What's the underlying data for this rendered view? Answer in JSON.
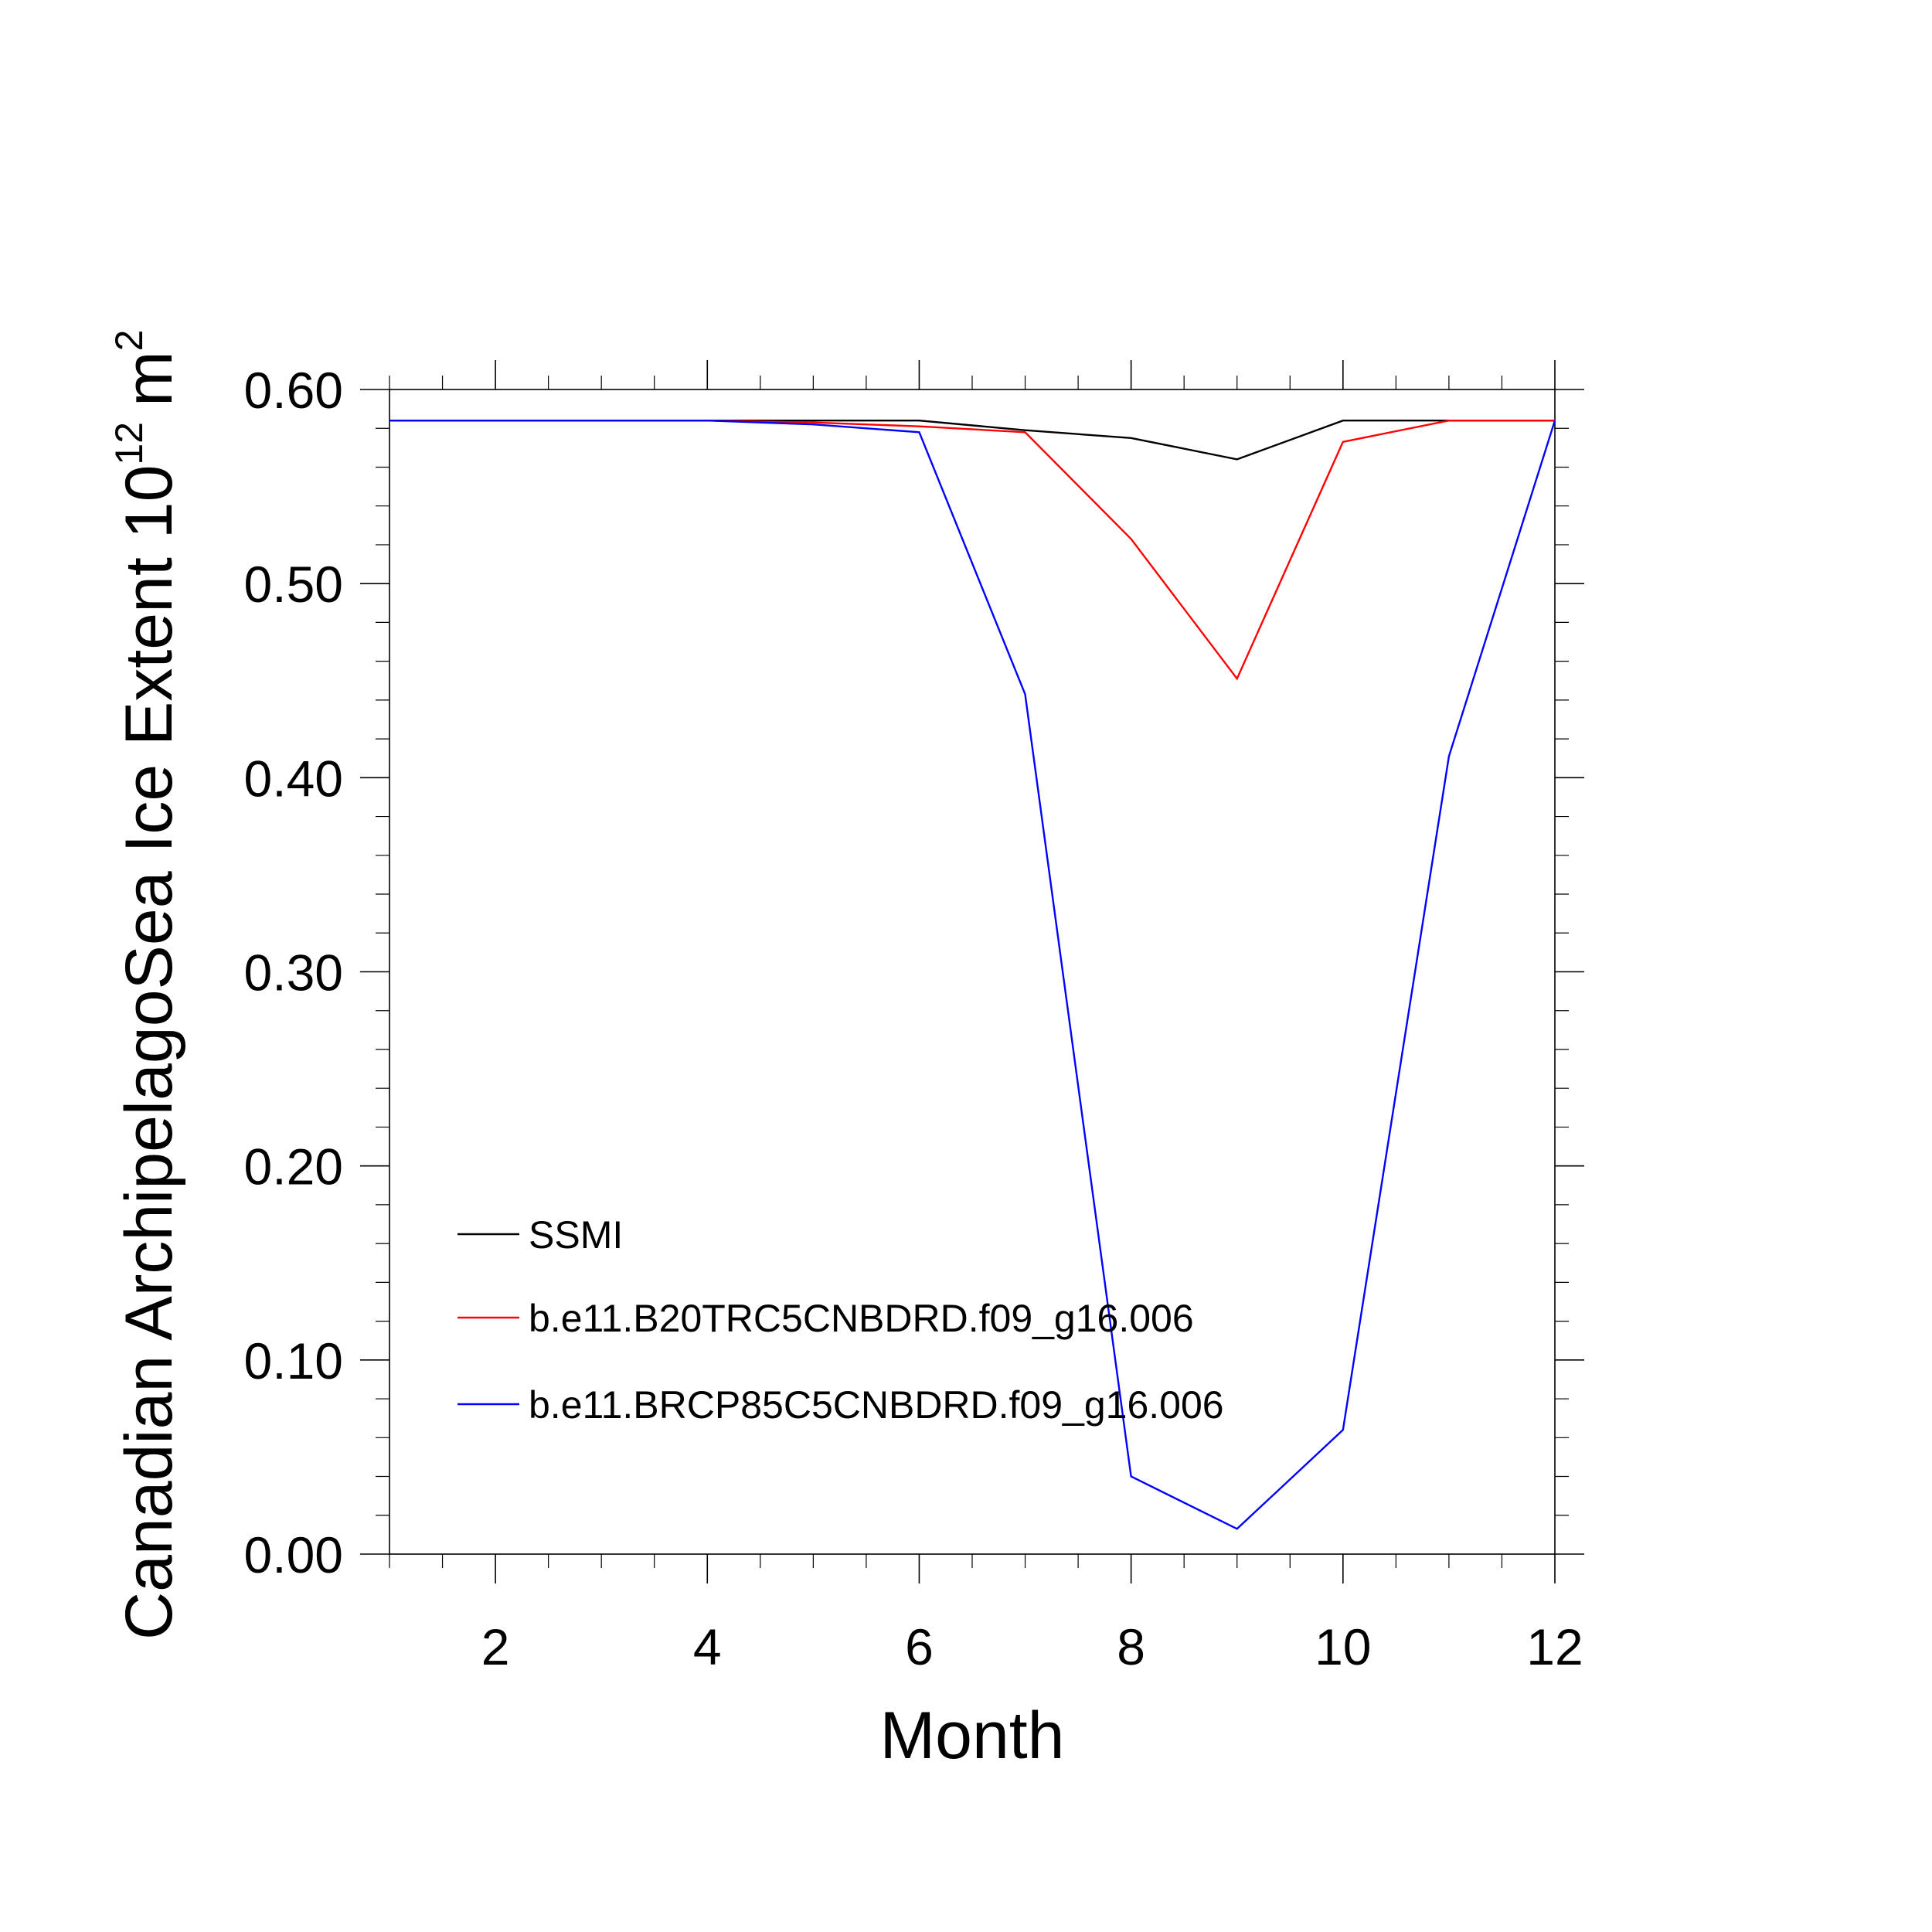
{
  "chart_data": {
    "type": "line",
    "xlabel": "Month",
    "ylabel_main": "Canadian ArchipelagoSea Ice Extent 10",
    "ylabel_exponent": "12",
    "ylabel_unit": "m",
    "ylabel_unit_exponent": "2",
    "xlim": [
      1,
      12
    ],
    "ylim": [
      0,
      0.6
    ],
    "xticks": [
      2,
      4,
      6,
      8,
      10,
      12
    ],
    "xtick_labels": [
      "2",
      "4",
      "6",
      "8",
      "10",
      "12"
    ],
    "yticks": [
      0,
      0.1,
      0.2,
      0.3,
      0.4,
      0.5,
      0.6
    ],
    "ytick_labels": [
      "0.00",
      "0.10",
      "0.20",
      "0.30",
      "0.40",
      "0.50",
      "0.60"
    ],
    "grid": false,
    "legend_position": "bottom-left",
    "x": [
      1,
      2,
      3,
      4,
      5,
      6,
      7,
      8,
      9,
      10,
      11,
      12
    ],
    "series": [
      {
        "name": "SSMI",
        "color": "#000000",
        "values": [
          0.584,
          0.584,
          0.584,
          0.584,
          0.584,
          0.584,
          0.579,
          0.575,
          0.564,
          0.584,
          0.584,
          0.584
        ]
      },
      {
        "name": "b.e11.B20TRC5CNBDRD.f09_g16.006",
        "color": "#ff0000",
        "values": [
          0.584,
          0.584,
          0.584,
          0.584,
          0.583,
          0.581,
          0.578,
          0.523,
          0.451,
          0.573,
          0.584,
          0.584
        ]
      },
      {
        "name": "b.e11.BRCP85C5CNBDRD.f09_g16.006",
        "color": "#0000ff",
        "values": [
          0.584,
          0.584,
          0.584,
          0.584,
          0.582,
          0.578,
          0.443,
          0.04,
          0.013,
          0.064,
          0.411,
          0.584
        ]
      }
    ]
  }
}
